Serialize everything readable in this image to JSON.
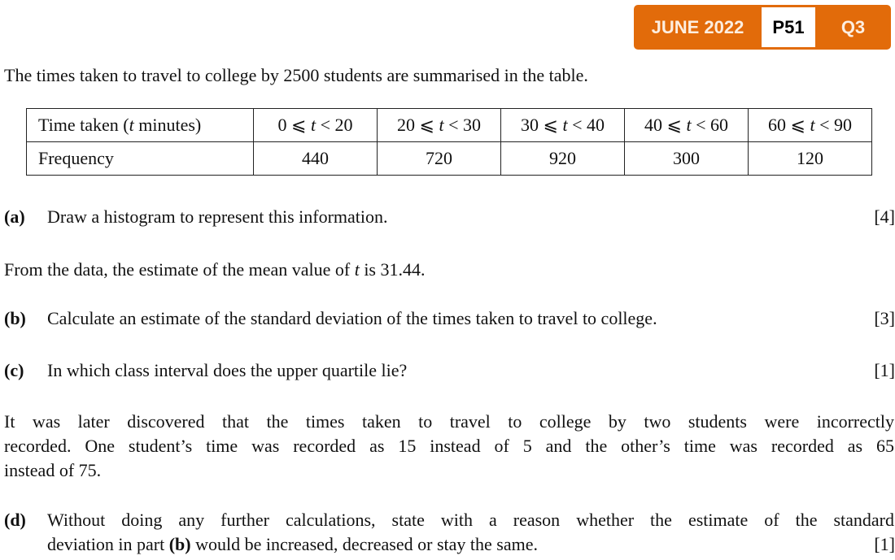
{
  "badge": {
    "session": "JUNE 2022",
    "paper": "P51",
    "question": "Q3",
    "color": "#E26B0A"
  },
  "intro": "The times taken to travel to college by 2500 students are summarised in the table.",
  "table": {
    "row1_label": [
      "Time taken (",
      "t",
      " minutes)"
    ],
    "row2_label": "Frequency",
    "intervals": [
      [
        "0 ⩽ ",
        "t",
        " < 20"
      ],
      [
        "20 ⩽ ",
        "t",
        " < 30"
      ],
      [
        "30 ⩽ ",
        "t",
        " < 40"
      ],
      [
        "40 ⩽ ",
        "t",
        " < 60"
      ],
      [
        "60 ⩽ ",
        "t",
        " < 90"
      ]
    ],
    "frequencies": [
      "440",
      "720",
      "920",
      "300",
      "120"
    ]
  },
  "part_a": {
    "label": "(a)",
    "text": "Draw a histogram to represent this information.",
    "marks": "[4]"
  },
  "mean_note": [
    "From the data, the estimate of the mean value of ",
    "t",
    " is 31.44."
  ],
  "part_b": {
    "label": "(b)",
    "text": "Calculate an estimate of the standard deviation of the times taken to travel to college.",
    "marks": "[3]"
  },
  "part_c": {
    "label": "(c)",
    "text": "In which class interval does the upper quartile lie?",
    "marks": "[1]"
  },
  "later": [
    "It was later discovered that the times taken to travel to college by two students were incorrectly",
    "recorded. One student’s time was recorded as 15 instead of 5 and the other’s time was recorded as 65",
    "instead of 75."
  ],
  "part_d": {
    "label": "(d)",
    "line1": "Without doing any further calculations, state with a reason whether the estimate of the standard",
    "line2_pre": "deviation in part ",
    "line2_bold": "(b)",
    "line2_post": " would be increased, decreased or stay the same.",
    "marks": "[1]"
  }
}
